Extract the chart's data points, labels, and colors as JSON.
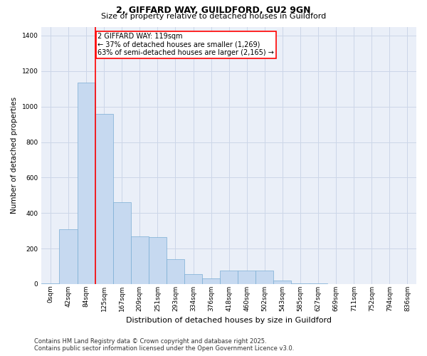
{
  "title1": "2, GIFFARD WAY, GUILDFORD, GU2 9GN",
  "title2": "Size of property relative to detached houses in Guildford",
  "xlabel": "Distribution of detached houses by size in Guildford",
  "ylabel": "Number of detached properties",
  "categories": [
    "0sqm",
    "42sqm",
    "84sqm",
    "125sqm",
    "167sqm",
    "209sqm",
    "251sqm",
    "293sqm",
    "334sqm",
    "376sqm",
    "418sqm",
    "460sqm",
    "502sqm",
    "543sqm",
    "585sqm",
    "627sqm",
    "669sqm",
    "711sqm",
    "752sqm",
    "794sqm",
    "836sqm"
  ],
  "values": [
    5,
    310,
    1135,
    960,
    460,
    270,
    265,
    140,
    55,
    30,
    75,
    75,
    75,
    20,
    5,
    5,
    0,
    0,
    0,
    0,
    0
  ],
  "bar_color": "#c6d9f0",
  "bar_edge_color": "#7aadd4",
  "vline_color": "red",
  "vline_x_idx": 2.5,
  "vline_label_title": "2 GIFFARD WAY: 119sqm",
  "vline_label_line1": "← 37% of detached houses are smaller (1,269)",
  "vline_label_line2": "63% of semi-detached houses are larger (2,165) →",
  "annotation_box_color": "red",
  "annotation_bg": "white",
  "ylim": [
    0,
    1450
  ],
  "yticks": [
    0,
    200,
    400,
    600,
    800,
    1000,
    1200,
    1400
  ],
  "footnote1": "Contains HM Land Registry data © Crown copyright and database right 2025.",
  "footnote2": "Contains public sector information licensed under the Open Government Licence v3.0.",
  "grid_color": "#ccd6e8",
  "bg_color": "#eaeff8",
  "title1_fontsize": 9,
  "title2_fontsize": 8,
  "ylabel_fontsize": 7.5,
  "xlabel_fontsize": 8,
  "tick_fontsize": 6.5,
  "annot_fontsize": 7,
  "footnote_fontsize": 6
}
